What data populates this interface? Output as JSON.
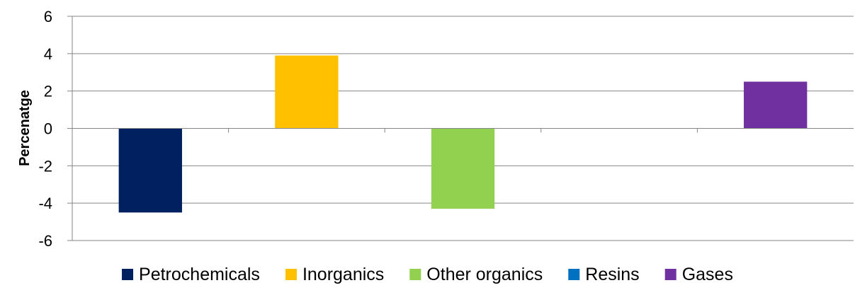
{
  "chart_data": {
    "type": "bar",
    "title": "",
    "xlabel": "",
    "ylabel": "Percenatge",
    "ylim": [
      -6,
      6
    ],
    "yticks": [
      6,
      4,
      2,
      0,
      -2,
      -4,
      -6
    ],
    "grid": true,
    "legend_position": "bottom",
    "categories": [
      "Petrochemicals",
      "Inorganics",
      "Other organics",
      "Resins",
      "Gases"
    ],
    "values": [
      -4.5,
      3.9,
      -4.3,
      0,
      2.5
    ],
    "colors": [
      "#002060",
      "#FFC000",
      "#92D050",
      "#0070C0",
      "#7030A0"
    ]
  }
}
